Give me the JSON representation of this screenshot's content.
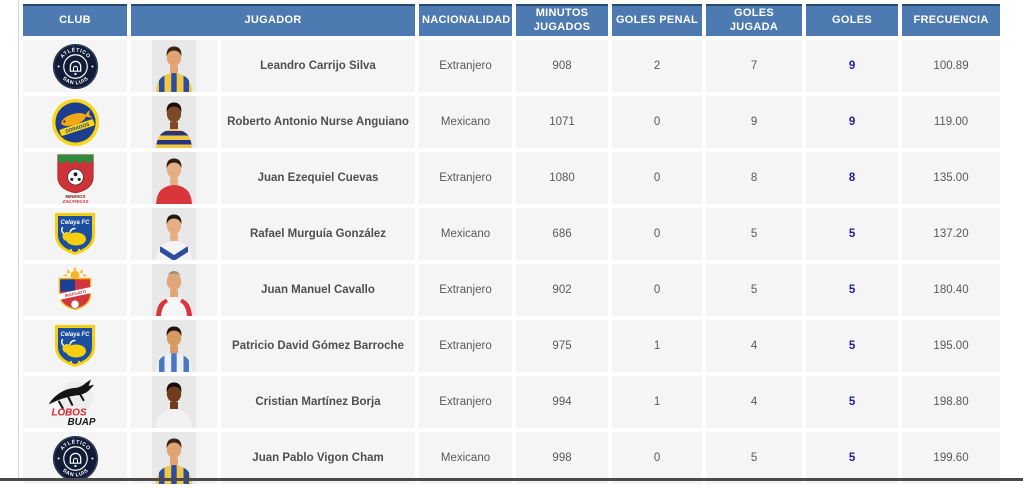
{
  "header": {
    "columns": [
      {
        "id": "club",
        "label": "CLUB"
      },
      {
        "id": "jugador",
        "label": "JUGADOR"
      },
      {
        "id": "nacionalidad",
        "label": "NACIONALIDAD"
      },
      {
        "id": "minutos_jugados",
        "label": "MINUTOS JUGADOS"
      },
      {
        "id": "goles_penal",
        "label": "GOLES PENAL"
      },
      {
        "id": "goles_jugada",
        "label": "GOLES JUGADA"
      },
      {
        "id": "goles",
        "label": "GOLES"
      },
      {
        "id": "frecuencia",
        "label": "FRECUENCIA"
      }
    ]
  },
  "table": {
    "rows": [
      {
        "club": "Atlético San Luis",
        "club_id": "atletico-san-luis",
        "player": "Leandro Carrijo Silva",
        "nacionalidad": "Extranjero",
        "minutos": "908",
        "goles_penal": "2",
        "goles_jugada": "7",
        "goles": "9",
        "frecuencia": "100.89",
        "avatar": {
          "skin": "#e2a374",
          "hair": "#332417",
          "style": "short",
          "base": "#f0c844",
          "accent": "#2e4da0",
          "pattern": "stripes"
        }
      },
      {
        "club": "Dorados de Sinaloa",
        "club_id": "dorados",
        "player": "Roberto Antonio Nurse Anguiano",
        "nacionalidad": "Mexicano",
        "minutos": "1071",
        "goles_penal": "0",
        "goles_jugada": "9",
        "goles": "9",
        "frecuencia": "119.00",
        "avatar": {
          "skin": "#7c4a27",
          "hair": "#1c110a",
          "style": "short",
          "base": "#f0c844",
          "accent": "#27337f",
          "pattern": "hoops"
        }
      },
      {
        "club": "Mineros de Zacatecas",
        "club_id": "mineros",
        "player": "Juan Ezequiel Cuevas",
        "nacionalidad": "Extranjero",
        "minutos": "1080",
        "goles_penal": "0",
        "goles_jugada": "8",
        "goles": "8",
        "frecuencia": "135.00",
        "avatar": {
          "skin": "#e6af83",
          "hair": "#2b1d12",
          "style": "short",
          "base": "#d8353c",
          "accent": "#b7272e",
          "pattern": "plain"
        }
      },
      {
        "club": "Celaya FC",
        "club_id": "celaya",
        "player": "Rafael Murguía González",
        "nacionalidad": "Mexicano",
        "minutos": "686",
        "goles_penal": "0",
        "goles_jugada": "5",
        "goles": "5",
        "frecuencia": "137.20",
        "avatar": {
          "skin": "#e6af83",
          "hair": "#241811",
          "style": "short",
          "base": "#f4f4f4",
          "accent": "#2e4da0",
          "pattern": "chevron"
        }
      },
      {
        "club": "Irapuato",
        "club_id": "irapuato",
        "player": "Juan Manuel Cavallo",
        "nacionalidad": "Extranjero",
        "minutos": "902",
        "goles_penal": "0",
        "goles_jugada": "5",
        "goles": "5",
        "frecuencia": "180.40",
        "avatar": {
          "skin": "#e0a678",
          "hair": "#9a8c77",
          "style": "bald",
          "base": "#f6f6f6",
          "accent": "#d8353c",
          "pattern": "trim"
        }
      },
      {
        "club": "Celaya FC",
        "club_id": "celaya",
        "player": "Patricio David Gómez Barroche",
        "nacionalidad": "Extranjero",
        "minutos": "975",
        "goles_penal": "1",
        "goles_jugada": "4",
        "goles": "5",
        "frecuencia": "195.00",
        "avatar": {
          "skin": "#d79a61",
          "hair": "#20150d",
          "style": "short",
          "base": "#eef2f8",
          "accent": "#4a77c0",
          "pattern": "stripes"
        }
      },
      {
        "club": "Lobos BUAP",
        "club_id": "lobos-buap",
        "player": "Cristian Martínez Borja",
        "nacionalidad": "Extranjero",
        "minutos": "994",
        "goles_penal": "1",
        "goles_jugada": "4",
        "goles": "5",
        "frecuencia": "198.80",
        "avatar": {
          "skin": "#6f3d1e",
          "hair": "#140d08",
          "style": "short",
          "base": "#f2f2f2",
          "accent": "#dddddd",
          "pattern": "plain"
        }
      },
      {
        "club": "Atlético San Luis",
        "club_id": "atletico-san-luis",
        "player": "Juan Pablo Vigon Cham",
        "nacionalidad": "Mexicano",
        "minutos": "998",
        "goles_penal": "0",
        "goles_jugada": "5",
        "goles": "5",
        "frecuencia": "199.60",
        "avatar": {
          "skin": "#e2a374",
          "hair": "#352517",
          "style": "short",
          "base": "#f0c844",
          "accent": "#2e4da0",
          "pattern": "stripes"
        }
      }
    ]
  },
  "colors": {
    "header_bg": "#4d7ab0",
    "header_text": "#ffffff",
    "row_bg": "#f5f5f6",
    "goles_color": "#1e1e8f",
    "page_bg": "#ffffff"
  }
}
